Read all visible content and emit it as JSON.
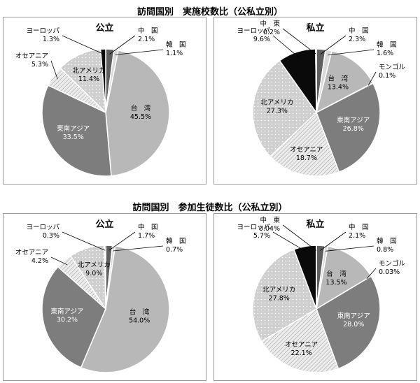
{
  "sections": [
    {
      "title": "訪問国別　実施校数比（公私立別）"
    },
    {
      "title": "訪問国別　参加生徒数比（公私立別）"
    }
  ],
  "chart_data": [
    {
      "type": "pie",
      "title": "公立",
      "slices": [
        {
          "label": "中　国",
          "value": 2.1,
          "value_label": "2.1%"
        },
        {
          "label": "韓　国",
          "value": 1.1,
          "value_label": "1.1%"
        },
        {
          "label": "台　湾",
          "value": 45.5,
          "value_label": "45.5%"
        },
        {
          "label": "東南アジア",
          "value": 33.5,
          "value_label": "33.5%"
        },
        {
          "label": "オセアニア",
          "value": 5.3,
          "value_label": "5.3%"
        },
        {
          "label": "北アメリカ",
          "value": 11.4,
          "value_label": "11.4%"
        },
        {
          "label": "ヨーロッパ",
          "value": 1.3,
          "value_label": "1.3%"
        }
      ]
    },
    {
      "type": "pie",
      "title": "私立",
      "slices": [
        {
          "label": "中　国",
          "value": 2.3,
          "value_label": "2.3%"
        },
        {
          "label": "韓　国",
          "value": 1.6,
          "value_label": "1.6%"
        },
        {
          "label": "台　湾",
          "value": 13.4,
          "value_label": "13.4%"
        },
        {
          "label": "モンゴル",
          "value": 0.1,
          "value_label": "0.1%"
        },
        {
          "label": "東南アジア",
          "value": 26.8,
          "value_label": "26.8%"
        },
        {
          "label": "オセアニア",
          "value": 18.7,
          "value_label": "18.7%"
        },
        {
          "label": "北アメリカ",
          "value": 27.3,
          "value_label": "27.3%"
        },
        {
          "label": "ヨーロッパ",
          "value": 9.6,
          "value_label": "9.6%"
        },
        {
          "label": "中　東",
          "value": 0.2,
          "value_label": "0.2%"
        }
      ]
    },
    {
      "type": "pie",
      "title": "公立",
      "slices": [
        {
          "label": "中　国",
          "value": 1.7,
          "value_label": "1.7%"
        },
        {
          "label": "韓　国",
          "value": 0.7,
          "value_label": "0.7%"
        },
        {
          "label": "台　湾",
          "value": 54.0,
          "value_label": "54.0%"
        },
        {
          "label": "東南アジア",
          "value": 30.2,
          "value_label": "30.2%"
        },
        {
          "label": "オセアニア",
          "value": 4.2,
          "value_label": "4.2%"
        },
        {
          "label": "北アメリカ",
          "value": 9.0,
          "value_label": "9.0%"
        },
        {
          "label": "ヨーロッパ",
          "value": 0.3,
          "value_label": "0.3%"
        }
      ]
    },
    {
      "type": "pie",
      "title": "私立",
      "slices": [
        {
          "label": "中　国",
          "value": 2.1,
          "value_label": "2.1%"
        },
        {
          "label": "韓　国",
          "value": 0.8,
          "value_label": "0.8%"
        },
        {
          "label": "台　湾",
          "value": 13.5,
          "value_label": "13.5%"
        },
        {
          "label": "モンゴル",
          "value": 0.03,
          "value_label": "0.03%"
        },
        {
          "label": "東南アジア",
          "value": 28.0,
          "value_label": "28.0%"
        },
        {
          "label": "オセアニア",
          "value": 22.1,
          "value_label": "22.1%"
        },
        {
          "label": "北アメリカ",
          "value": 27.8,
          "value_label": "27.8%"
        },
        {
          "label": "ヨーロッパ",
          "value": 5.7,
          "value_label": "5.7%"
        },
        {
          "label": "中　東",
          "value": 0.04,
          "value_label": "0.04%"
        }
      ]
    }
  ],
  "region_colors": {
    "中　国": "#5f5f5f",
    "韓　国": "#d9d9d9",
    "台　湾": "#b8b8b8",
    "モンゴル": "#e6e6e6",
    "東南アジア": "#7d7d7d",
    "オセアニア": "#ececec",
    "北アメリカ": "#cfcfcf",
    "ヨーロッパ": "#0a0a0a",
    "中　東": "#bdbdbd"
  }
}
